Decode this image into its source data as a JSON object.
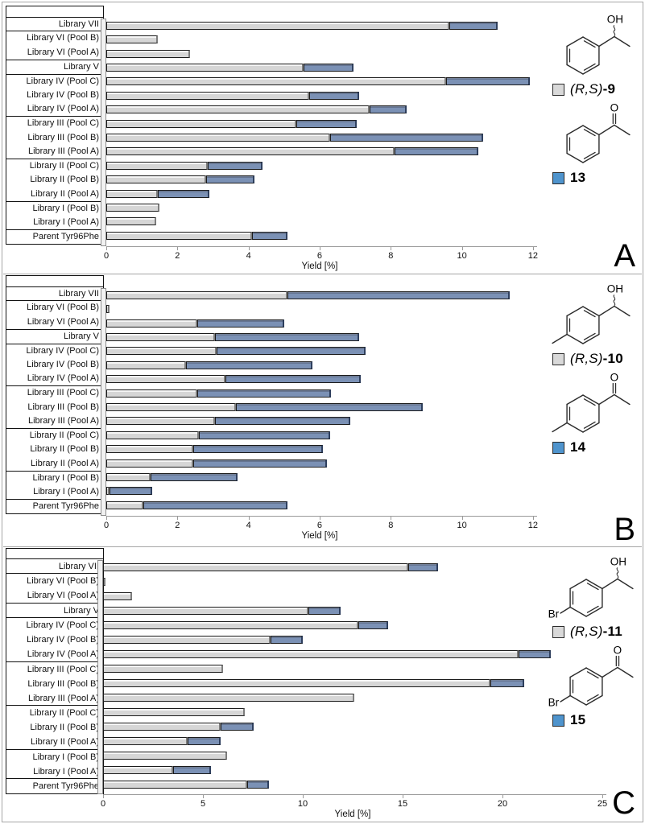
{
  "figure": {
    "axis_title": "Yield [%]",
    "bar_gray_fill": "#d6d6d6",
    "bar_blue_fill": "#7b91b5",
    "legend_gray_swatch": "#d9d9d9",
    "legend_blue_swatch": "#4f94cd"
  },
  "chart_data": [
    {
      "type": "bar",
      "orientation": "horizontal",
      "panel_letter": "A",
      "xlabel": "Yield [%]",
      "xlim": [
        0,
        12
      ],
      "xticks": [
        0,
        2,
        4,
        6,
        8,
        10,
        12
      ],
      "categories": [
        "Library VII",
        "Library VI (Pool B)",
        "Library VI (Pool A)",
        "Library V",
        "Library IV (Pool C)",
        "Library IV (Pool B)",
        "Library IV (Pool A)",
        "Library III (Pool C)",
        "Library III (Pool B)",
        "Library III (Pool A)",
        "Library II (Pool C)",
        "Library II (Pool B)",
        "Library II (Pool A)",
        "Library I (Pool B)",
        "Library I (Pool A)",
        "Parent Tyr96Phe"
      ],
      "category_groups": [
        1,
        2,
        1,
        3,
        3,
        3,
        2,
        1
      ],
      "series": [
        {
          "name": "(R,S)-9",
          "color": "#d6d6d6",
          "values": [
            9.65,
            1.45,
            2.35,
            5.55,
            9.55,
            5.7,
            7.4,
            5.35,
            6.3,
            8.1,
            2.85,
            2.8,
            1.45,
            1.5,
            1.4,
            4.1
          ]
        },
        {
          "name": "13",
          "color": "#7b91b5",
          "values": [
            1.35,
            0,
            0,
            1.4,
            2.35,
            1.4,
            1.05,
            1.7,
            4.3,
            2.35,
            1.55,
            1.35,
            1.45,
            0,
            0,
            1.0
          ]
        }
      ],
      "legend": [
        {
          "swatch_color": "#d9d9d9",
          "italic": "(R,S)",
          "bold": "-9",
          "structure": "alcohol",
          "para": "none"
        },
        {
          "swatch_color": "#4f94cd",
          "italic": "",
          "bold": "13",
          "structure": "ketone",
          "para": "none"
        }
      ],
      "structure_text": {
        "oh": "OH",
        "o": "O",
        "para_label": ""
      }
    },
    {
      "type": "bar",
      "orientation": "horizontal",
      "panel_letter": "B",
      "xlabel": "Yield [%]",
      "xlim": [
        0,
        12
      ],
      "xticks": [
        0,
        2,
        4,
        6,
        8,
        10,
        12
      ],
      "categories": [
        "Library VII",
        "Library VI (Pool B)",
        "Library VI (Pool A)",
        "Library V",
        "Library IV (Pool C)",
        "Library IV (Pool B)",
        "Library IV (Pool A)",
        "Library III (Pool C)",
        "Library III (Pool B)",
        "Library III (Pool A)",
        "Library II (Pool C)",
        "Library II (Pool B)",
        "Library II (Pool A)",
        "Library I (Pool B)",
        "Library I (Pool A)",
        "Parent Tyr96Phe"
      ],
      "category_groups": [
        1,
        2,
        1,
        3,
        3,
        3,
        2,
        1
      ],
      "series": [
        {
          "name": "(R,S)-10",
          "color": "#d6d6d6",
          "values": [
            5.1,
            0.08,
            2.55,
            3.05,
            3.1,
            2.25,
            3.35,
            2.55,
            3.65,
            3.05,
            2.6,
            2.45,
            2.45,
            1.25,
            0.1,
            1.05
          ]
        },
        {
          "name": "14",
          "color": "#7b91b5",
          "values": [
            6.25,
            0,
            2.45,
            4.05,
            4.2,
            3.55,
            3.8,
            3.75,
            5.25,
            3.8,
            3.7,
            3.65,
            3.75,
            2.45,
            1.2,
            4.05
          ]
        }
      ],
      "legend": [
        {
          "swatch_color": "#d9d9d9",
          "italic": "(R,S)",
          "bold": "-10",
          "structure": "alcohol",
          "para": "methyl"
        },
        {
          "swatch_color": "#4f94cd",
          "italic": "",
          "bold": "14",
          "structure": "ketone",
          "para": "methyl"
        }
      ],
      "structure_text": {
        "oh": "OH",
        "o": "O",
        "para_label": ""
      }
    },
    {
      "type": "bar",
      "orientation": "horizontal",
      "panel_letter": "C",
      "xlabel": "Yield [%]",
      "xlim": [
        0,
        25
      ],
      "xticks": [
        0,
        5,
        10,
        15,
        20,
        25
      ],
      "categories": [
        "Library VII",
        "Library VI (Pool B)",
        "Library VI (Pool A)",
        "Library V",
        "Library IV (Pool C)",
        "Library IV (Pool B)",
        "Library IV (Pool A)",
        "Library III (Pool C)",
        "Library III (Pool B)",
        "Library III (Pool A)",
        "Library II (Pool C)",
        "Library II (Pool B)",
        "Library II (Pool A)",
        "Library I (Pool B)",
        "Library I (Pool A)",
        "Parent Tyr96Phe"
      ],
      "category_groups": [
        1,
        2,
        1,
        3,
        3,
        3,
        2,
        1
      ],
      "series": [
        {
          "name": "(R,S)-11",
          "color": "#d6d6d6",
          "values": [
            15.3,
            0.12,
            1.45,
            10.3,
            12.8,
            8.4,
            20.8,
            6.0,
            19.4,
            12.6,
            7.1,
            5.9,
            4.25,
            6.2,
            3.5,
            7.2
          ]
        },
        {
          "name": "15",
          "color": "#7b91b5",
          "values": [
            1.5,
            0,
            0,
            1.6,
            1.5,
            1.6,
            1.6,
            0,
            1.7,
            0,
            0,
            1.65,
            1.65,
            0,
            1.9,
            1.1
          ]
        }
      ],
      "legend": [
        {
          "swatch_color": "#d9d9d9",
          "italic": "(R,S)",
          "bold": "-11",
          "structure": "alcohol",
          "para": "br"
        },
        {
          "swatch_color": "#4f94cd",
          "italic": "",
          "bold": "15",
          "structure": "ketone",
          "para": "br"
        }
      ],
      "structure_text": {
        "oh": "OH",
        "o": "O",
        "para_label": "Br"
      }
    }
  ]
}
